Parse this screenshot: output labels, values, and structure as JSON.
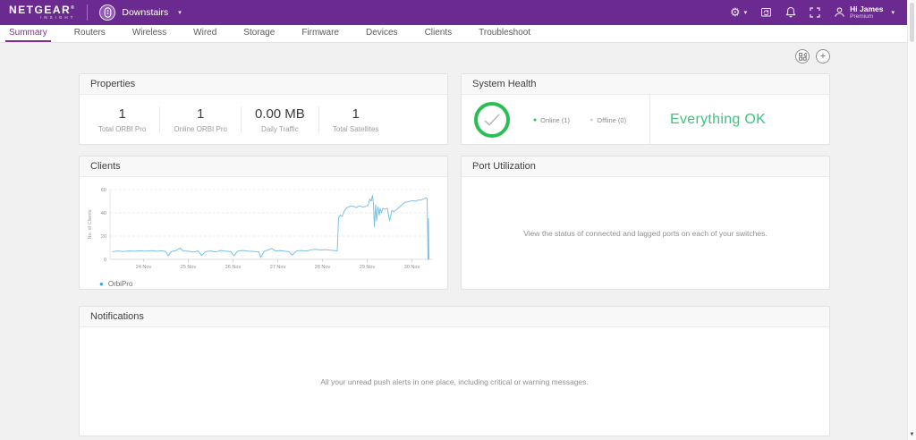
{
  "header": {
    "brand": {
      "name": "NETGEAR",
      "registered": "®",
      "sub": "INSIGHT"
    },
    "location": {
      "label": "Downstairs"
    },
    "user": {
      "greeting": "Hi James",
      "tier": "Premium"
    }
  },
  "icons": {
    "settings": "⚙",
    "caret": "▾",
    "plus": "+",
    "dot": "●",
    "scroll_down": "▼"
  },
  "tabs": [
    {
      "label": "Summary",
      "active": true
    },
    {
      "label": "Routers",
      "active": false
    },
    {
      "label": "Wireless",
      "active": false
    },
    {
      "label": "Wired",
      "active": false
    },
    {
      "label": "Storage",
      "active": false
    },
    {
      "label": "Firmware",
      "active": false
    },
    {
      "label": "Devices",
      "active": false
    },
    {
      "label": "Clients",
      "active": false
    },
    {
      "label": "Troubleshoot",
      "active": false
    }
  ],
  "cards": {
    "properties": {
      "title": "Properties",
      "stats": [
        {
          "value": "1",
          "label": "Total ORBI Pro"
        },
        {
          "value": "1",
          "label": "Online ORBI Pro"
        },
        {
          "value": "0.00 MB",
          "label": "Daily Traffic"
        },
        {
          "value": "1",
          "label": "Total Satellites"
        }
      ]
    },
    "system_health": {
      "title": "System Health",
      "online_label": "Online (1)",
      "offline_label": "Offline (0)",
      "status_text": "Everything OK",
      "status_color": "#3cc47c",
      "circle_color": "#2abf55"
    },
    "clients": {
      "title": "Clients"
    },
    "port_utilization": {
      "title": "Port Utilization",
      "message": "View the status of connected and lagged ports on each of your switches."
    },
    "notifications": {
      "title": "Notifications",
      "message": "All your unread push alerts in one place, including critical or warning messages."
    }
  },
  "chart_data": {
    "type": "line",
    "title": "Clients",
    "ylabel": "No. of Clients",
    "xlim": [
      0.25,
      7.45
    ],
    "ylim": [
      0,
      60
    ],
    "y_ticks": [
      0,
      20,
      40,
      60
    ],
    "x_ticks": [
      {
        "pos": 1,
        "label": "24 Nov"
      },
      {
        "pos": 2,
        "label": "25 Nov"
      },
      {
        "pos": 3,
        "label": "26 Nov"
      },
      {
        "pos": 4,
        "label": "27 Nov"
      },
      {
        "pos": 5,
        "label": "28 Nov"
      },
      {
        "pos": 6,
        "label": "29 Nov"
      },
      {
        "pos": 7,
        "label": "30 Nov"
      }
    ],
    "grid": true,
    "legend_position": "bottom-left",
    "series": [
      {
        "name": "OrbiPro",
        "color": "#7cc0e8",
        "legend_dot_color": "#3e9fd8",
        "points": [
          [
            0.3,
            6.5
          ],
          [
            0.42,
            7.2
          ],
          [
            0.55,
            6.8
          ],
          [
            0.68,
            7.3
          ],
          [
            0.8,
            7.0
          ],
          [
            0.92,
            7.4
          ],
          [
            1.05,
            7.0
          ],
          [
            1.18,
            7.5
          ],
          [
            1.3,
            7.0
          ],
          [
            1.42,
            7.3
          ],
          [
            1.5,
            6.8
          ],
          [
            1.55,
            3.0
          ],
          [
            1.62,
            6.8
          ],
          [
            1.72,
            7.5
          ],
          [
            1.82,
            9.8
          ],
          [
            1.88,
            7.2
          ],
          [
            2.0,
            7.0
          ],
          [
            2.1,
            6.2
          ],
          [
            2.22,
            7.2
          ],
          [
            2.3,
            3.2
          ],
          [
            2.38,
            6.6
          ],
          [
            2.5,
            7.2
          ],
          [
            2.62,
            6.4
          ],
          [
            2.72,
            7.6
          ],
          [
            2.85,
            7.0
          ],
          [
            2.95,
            6.6
          ],
          [
            3.02,
            3.0
          ],
          [
            3.1,
            7.0
          ],
          [
            3.22,
            7.6
          ],
          [
            3.35,
            7.0
          ],
          [
            3.48,
            6.8
          ],
          [
            3.58,
            6.4
          ],
          [
            3.62,
            1.5
          ],
          [
            3.7,
            7.0
          ],
          [
            3.8,
            8.2
          ],
          [
            3.86,
            9.4
          ],
          [
            3.95,
            7.2
          ],
          [
            4.05,
            7.6
          ],
          [
            4.15,
            7.0
          ],
          [
            4.25,
            6.6
          ],
          [
            4.32,
            3.6
          ],
          [
            4.42,
            7.2
          ],
          [
            4.52,
            7.6
          ],
          [
            4.65,
            7.2
          ],
          [
            4.75,
            8.2
          ],
          [
            4.85,
            8.6
          ],
          [
            4.95,
            8.0
          ],
          [
            5.05,
            8.4
          ],
          [
            5.15,
            8.0
          ],
          [
            5.25,
            7.6
          ],
          [
            5.33,
            7.2
          ],
          [
            5.36,
            36
          ],
          [
            5.4,
            38
          ],
          [
            5.44,
            37
          ],
          [
            5.48,
            41
          ],
          [
            5.53,
            44
          ],
          [
            5.58,
            45
          ],
          [
            5.64,
            46
          ],
          [
            5.7,
            45.5
          ],
          [
            5.76,
            44.5
          ],
          [
            5.82,
            46
          ],
          [
            5.9,
            45
          ],
          [
            5.97,
            45.5
          ],
          [
            6.02,
            46.5
          ],
          [
            6.06,
            52
          ],
          [
            6.09,
            50
          ],
          [
            6.12,
            55
          ],
          [
            6.14,
            48
          ],
          [
            6.16,
            28
          ],
          [
            6.19,
            47
          ],
          [
            6.21,
            33
          ],
          [
            6.24,
            45
          ],
          [
            6.27,
            38
          ],
          [
            6.29,
            44
          ],
          [
            6.32,
            40
          ],
          [
            6.35,
            44
          ],
          [
            6.4,
            43
          ],
          [
            6.45,
            44
          ],
          [
            6.5,
            33
          ],
          [
            6.55,
            42
          ],
          [
            6.6,
            41
          ],
          [
            6.66,
            43
          ],
          [
            6.72,
            45
          ],
          [
            6.78,
            47
          ],
          [
            6.84,
            49
          ],
          [
            6.9,
            49.5
          ],
          [
            6.96,
            50
          ],
          [
            7.02,
            50.5
          ],
          [
            7.08,
            50
          ],
          [
            7.14,
            51
          ],
          [
            7.2,
            51
          ],
          [
            7.26,
            52
          ],
          [
            7.31,
            53
          ],
          [
            7.34,
            52
          ],
          [
            7.36,
            0
          ],
          [
            7.37,
            35
          ],
          [
            7.38,
            0
          ]
        ]
      }
    ]
  }
}
